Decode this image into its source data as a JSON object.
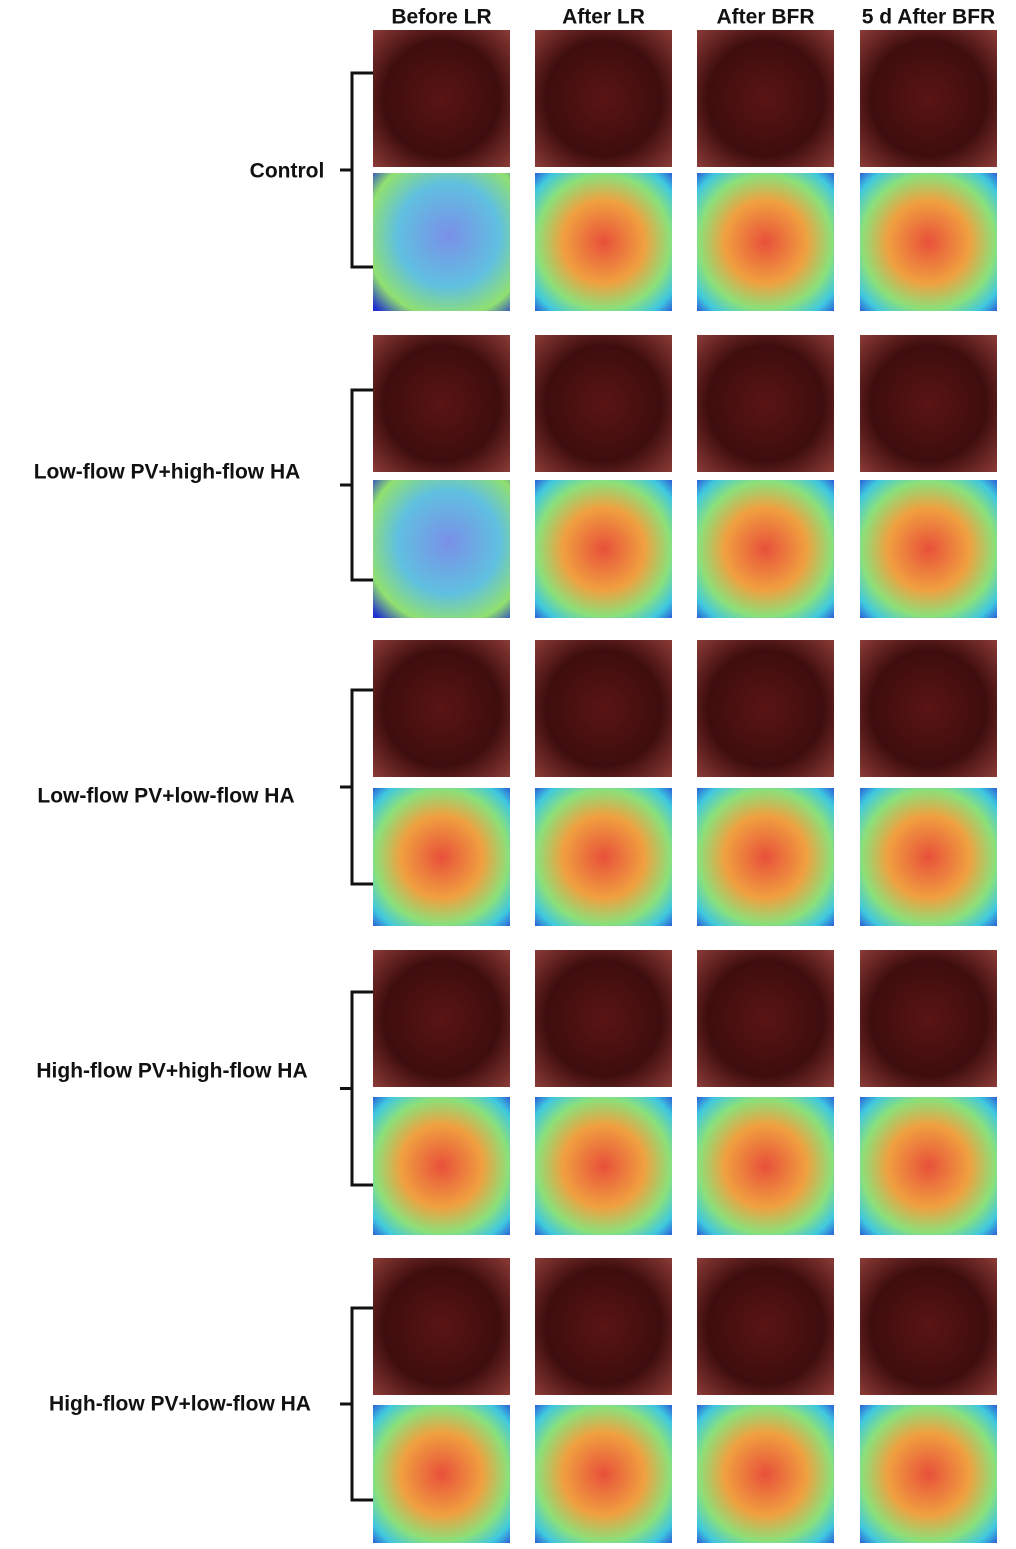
{
  "columns": [
    "Before LR",
    "After LR",
    "After BFR",
    "5 d After BFR"
  ],
  "rows": [
    {
      "label": "Control"
    },
    {
      "label": "Low-flow PV+high-flow HA"
    },
    {
      "label": "Low-flow PV+low-flow HA"
    },
    {
      "label": "High-flow PV+high-flow HA"
    },
    {
      "label": "High-flow PV+low-flow HA"
    }
  ]
}
